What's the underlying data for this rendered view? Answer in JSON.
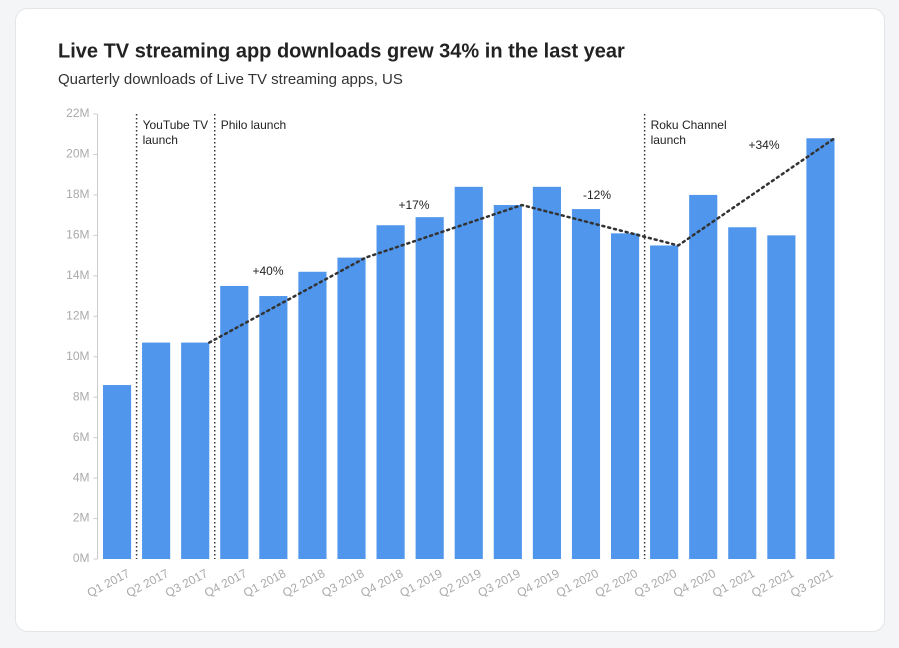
{
  "chart_data": {
    "type": "bar",
    "title": "Live TV streaming app downloads grew 34% in the last year",
    "subtitle": "Quarterly downloads of Live TV streaming apps, US",
    "categories": [
      "Q1 2017",
      "Q2 2017",
      "Q3 2017",
      "Q4 2017",
      "Q1 2018",
      "Q2 2018",
      "Q3 2018",
      "Q4 2018",
      "Q1 2019",
      "Q2 2019",
      "Q3 2019",
      "Q4 2019",
      "Q1 2020",
      "Q2 2020",
      "Q3 2020",
      "Q4 2020",
      "Q1 2021",
      "Q2 2021",
      "Q3 2021"
    ],
    "values": [
      8.6,
      10.7,
      10.7,
      13.5,
      13.0,
      14.2,
      14.9,
      16.5,
      16.9,
      18.4,
      17.5,
      18.4,
      17.3,
      16.1,
      15.5,
      18.0,
      16.4,
      16.0,
      20.8
    ],
    "color": "#4f96ec",
    "ylim": [
      0,
      22
    ],
    "yticks": [
      {
        "value": 0,
        "label": "0M"
      },
      {
        "value": 2,
        "label": "2M"
      },
      {
        "value": 4,
        "label": "4M"
      },
      {
        "value": 6,
        "label": "6M"
      },
      {
        "value": 8,
        "label": "8M"
      },
      {
        "value": 10,
        "label": "10M"
      },
      {
        "value": 12,
        "label": "12M"
      },
      {
        "value": 14,
        "label": "14M"
      },
      {
        "value": 16,
        "label": "16M"
      },
      {
        "value": 18,
        "label": "18M"
      },
      {
        "value": 20,
        "label": "20M"
      },
      {
        "value": 22,
        "label": "22M"
      }
    ],
    "trend": {
      "categories": [
        "Q3 2017",
        "Q3 2018",
        "Q3 2019",
        "Q3 2020",
        "Q3 2021"
      ],
      "values": [
        10.7,
        14.9,
        17.5,
        15.5,
        20.8
      ],
      "color": "#333333"
    },
    "annotations": [
      "+40%",
      "+17%",
      "-12%",
      "+34%"
    ],
    "events": [
      {
        "category": "Q2 2017",
        "label": [
          "YouTube TV",
          "launch"
        ]
      },
      {
        "category": "Q4 2017",
        "label": [
          "Philo launch"
        ]
      },
      {
        "category": "Q3 2020",
        "label": [
          "Roku Channel",
          "launch"
        ]
      }
    ]
  }
}
